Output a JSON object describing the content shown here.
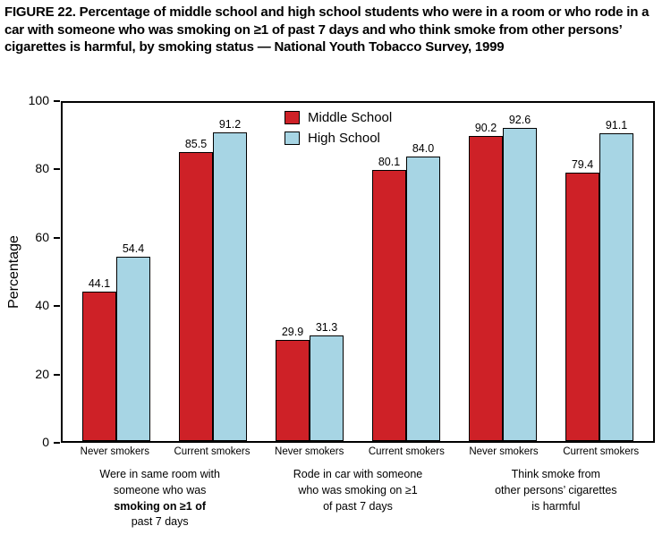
{
  "figure": {
    "title": "FIGURE 22. Percentage of middle school and high school students who were in a room or who rode in a car with someone who was smoking on ≥1 of past 7 days and who think smoke from other persons’ cigarettes is harmful, by smoking status — National Youth Tobacco Survey, 1999"
  },
  "chart_data": {
    "type": "bar",
    "title": "FIGURE 22. Percentage of middle school and high school students who were in a room or who rode in a car with someone who was smoking on ≥1 of past 7 days and who think smoke from other persons’ cigarettes is harmful, by smoking status — National Youth Tobacco Survey, 1999",
    "xlabel": "",
    "ylabel": "Percentage",
    "ylim": [
      0,
      100
    ],
    "yticks": [
      "0",
      "20",
      "40",
      "60",
      "80",
      "100"
    ],
    "grid": false,
    "legend_position": "top-center-inside",
    "categories": [
      "Never smokers",
      "Current smokers",
      "Never smokers",
      "Current smokers",
      "Never smokers",
      "Current smokers"
    ],
    "series": [
      {
        "name": "Middle School",
        "color": "#CE2127",
        "values": [
          44.1,
          85.5,
          29.9,
          80.1,
          90.2,
          79.4
        ],
        "value_labels": [
          "44.1",
          "85.5",
          "29.9",
          "80.1",
          "90.2",
          "79.4"
        ]
      },
      {
        "name": "High School",
        "color": "#A7D5E4",
        "values": [
          54.4,
          91.2,
          31.3,
          84.0,
          92.6,
          91.1
        ],
        "value_labels": [
          "54.4",
          "91.2",
          "31.3",
          "84.0",
          "92.6",
          "91.1"
        ]
      }
    ],
    "group_labels": [
      {
        "lines": [
          {
            "text": "Were in same room with",
            "bold": false
          },
          {
            "text": "someone who was",
            "bold": false
          },
          {
            "text": "smoking on ≥1 of",
            "bold": true
          },
          {
            "text": "past 7 days",
            "bold": false
          }
        ]
      },
      {
        "lines": [
          {
            "text": "Rode in car with someone",
            "bold": false
          },
          {
            "text": "who was smoking on ≥1",
            "bold": false
          },
          {
            "text": "of past 7 days",
            "bold": false
          }
        ]
      },
      {
        "lines": [
          {
            "text": "Think smoke from",
            "bold": false
          },
          {
            "text": "other persons’ cigarettes",
            "bold": false
          },
          {
            "text": "is harmful",
            "bold": false
          }
        ]
      }
    ]
  }
}
